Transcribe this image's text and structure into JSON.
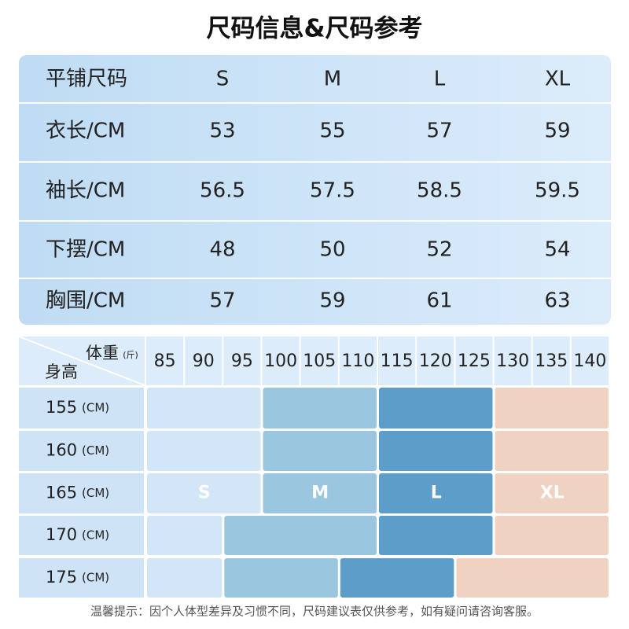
{
  "title": "尺码信息&尺码参考",
  "size_table": {
    "header": [
      "平铺尺码",
      "S",
      "M",
      "L",
      "XL"
    ],
    "rows": [
      [
        "衣长/CM",
        "53",
        "55",
        "57",
        "59"
      ],
      [
        "袖长/CM",
        "56.5",
        "57.5",
        "58.5",
        "59.5"
      ],
      [
        "下摆/CM",
        "48",
        "50",
        "52",
        "54"
      ],
      [
        "胸围/CM",
        "57",
        "59",
        "61",
        "63"
      ]
    ]
  },
  "reference": {
    "weight_label": "体重",
    "weight_unit": "(斤)",
    "height_label": "身高",
    "weights": [
      "85",
      "90",
      "95",
      "100",
      "105",
      "110",
      "115",
      "120",
      "125",
      "130",
      "135",
      "140"
    ],
    "heights": [
      {
        "value": "155",
        "unit": "(CM)"
      },
      {
        "value": "160",
        "unit": "(CM)"
      },
      {
        "value": "165",
        "unit": "(CM)"
      },
      {
        "value": "170",
        "unit": "(CM)"
      },
      {
        "value": "175",
        "unit": "(CM)"
      }
    ],
    "sizes": [
      "S",
      "M",
      "L",
      "XL"
    ]
  },
  "note": "温馨提示：因个人体型差异及习惯不同，尺码建议表仅供参考，如有疑问请咨询客服。"
}
